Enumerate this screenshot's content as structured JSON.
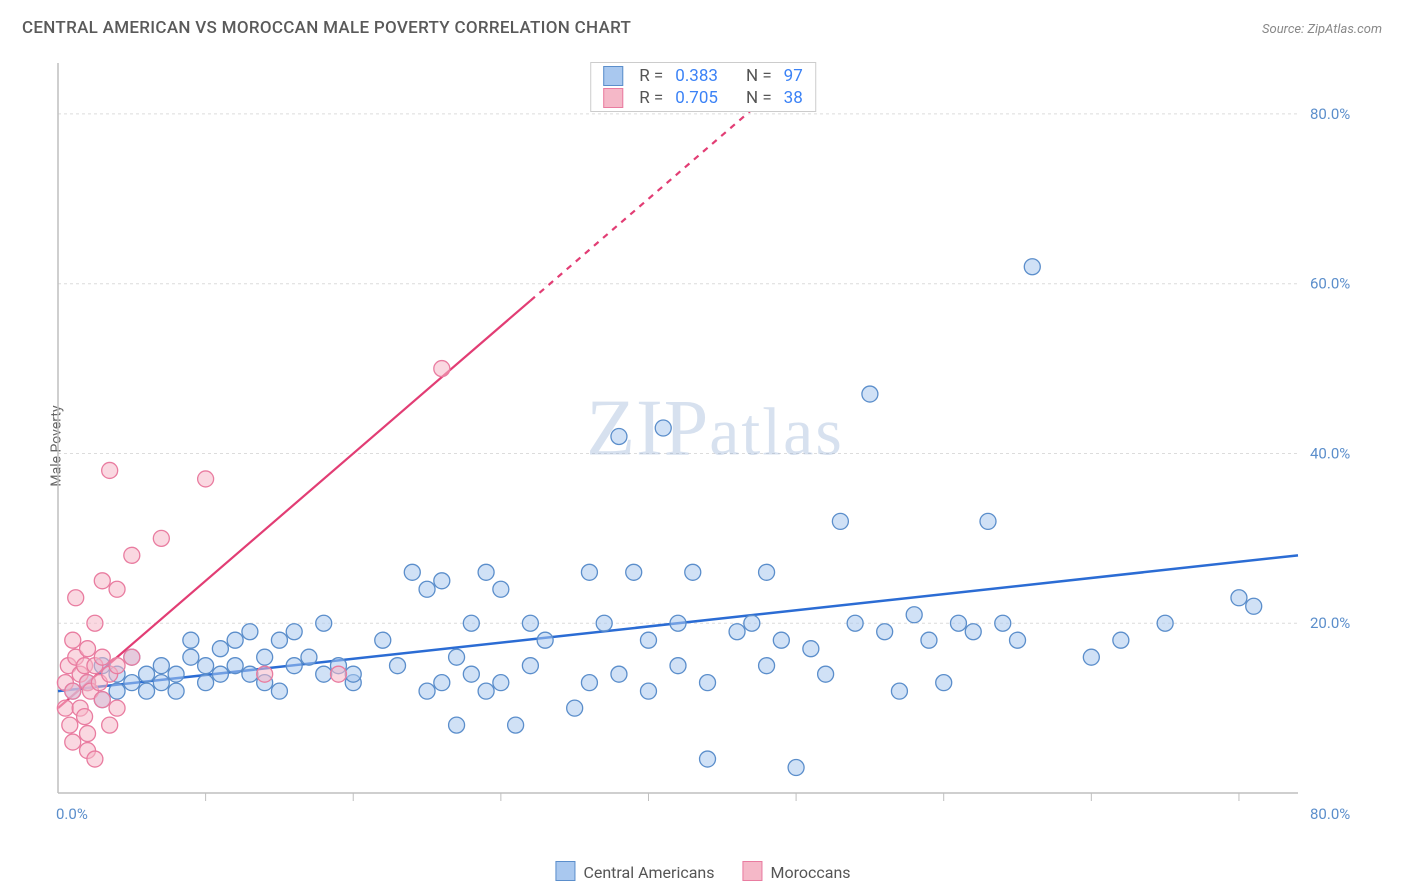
{
  "title": "CENTRAL AMERICAN VS MOROCCAN MALE POVERTY CORRELATION CHART",
  "source_label": "Source:",
  "source_name": "ZipAtlas.com",
  "ylabel": "Male Poverty",
  "watermark": "ZIPatlas",
  "chart": {
    "type": "scatter",
    "xlim": [
      0,
      84
    ],
    "ylim": [
      0,
      86
    ],
    "x_axis_end_label": "80.0%",
    "x_origin_label": "0.0%",
    "y_ticks": [
      {
        "v": 20,
        "label": "20.0%"
      },
      {
        "v": 40,
        "label": "40.0%"
      },
      {
        "v": 60,
        "label": "60.0%"
      },
      {
        "v": 80,
        "label": "80.0%"
      }
    ],
    "x_minor_ticks": [
      10,
      20,
      30,
      40,
      50,
      60,
      70,
      80
    ],
    "grid_color": "#dcdcdc",
    "axis_color": "#bfbfbf",
    "background": "#ffffff",
    "marker_radius": 8,
    "marker_opacity": 0.55,
    "series": [
      {
        "name": "Central Americans",
        "fill": "#a9c8ef",
        "stroke": "#5b8ecb",
        "regression": {
          "x1": 0,
          "y1": 12,
          "x2": 84,
          "y2": 28,
          "stroke": "#2b6cd4",
          "width": 2.5,
          "dash_from_x": null
        },
        "R": 0.383,
        "N": 97,
        "points": [
          [
            1,
            12
          ],
          [
            2,
            13
          ],
          [
            3,
            11
          ],
          [
            3,
            15
          ],
          [
            4,
            14
          ],
          [
            4,
            12
          ],
          [
            5,
            13
          ],
          [
            5,
            16
          ],
          [
            6,
            14
          ],
          [
            6,
            12
          ],
          [
            7,
            13
          ],
          [
            7,
            15
          ],
          [
            8,
            12
          ],
          [
            8,
            14
          ],
          [
            9,
            16
          ],
          [
            9,
            18
          ],
          [
            10,
            13
          ],
          [
            10,
            15
          ],
          [
            11,
            14
          ],
          [
            11,
            17
          ],
          [
            12,
            18
          ],
          [
            12,
            15
          ],
          [
            13,
            19
          ],
          [
            13,
            14
          ],
          [
            14,
            16
          ],
          [
            14,
            13
          ],
          [
            15,
            12
          ],
          [
            15,
            18
          ],
          [
            16,
            15
          ],
          [
            16,
            19
          ],
          [
            17,
            16
          ],
          [
            18,
            14
          ],
          [
            18,
            20
          ],
          [
            19,
            15
          ],
          [
            20,
            13
          ],
          [
            20,
            14
          ],
          [
            22,
            18
          ],
          [
            23,
            15
          ],
          [
            24,
            26
          ],
          [
            25,
            24
          ],
          [
            25,
            12
          ],
          [
            26,
            13
          ],
          [
            26,
            25
          ],
          [
            27,
            16
          ],
          [
            27,
            8
          ],
          [
            28,
            20
          ],
          [
            28,
            14
          ],
          [
            29,
            26
          ],
          [
            29,
            12
          ],
          [
            30,
            13
          ],
          [
            30,
            24
          ],
          [
            31,
            8
          ],
          [
            32,
            20
          ],
          [
            32,
            15
          ],
          [
            33,
            18
          ],
          [
            35,
            10
          ],
          [
            36,
            13
          ],
          [
            36,
            26
          ],
          [
            37,
            20
          ],
          [
            38,
            14
          ],
          [
            38,
            42
          ],
          [
            39,
            26
          ],
          [
            40,
            12
          ],
          [
            40,
            18
          ],
          [
            41,
            43
          ],
          [
            42,
            20
          ],
          [
            42,
            15
          ],
          [
            43,
            26
          ],
          [
            44,
            13
          ],
          [
            44,
            4
          ],
          [
            46,
            19
          ],
          [
            47,
            20
          ],
          [
            48,
            15
          ],
          [
            48,
            26
          ],
          [
            49,
            18
          ],
          [
            50,
            3
          ],
          [
            51,
            17
          ],
          [
            52,
            14
          ],
          [
            53,
            32
          ],
          [
            54,
            20
          ],
          [
            55,
            47
          ],
          [
            56,
            19
          ],
          [
            57,
            12
          ],
          [
            58,
            21
          ],
          [
            59,
            18
          ],
          [
            60,
            13
          ],
          [
            61,
            20
          ],
          [
            62,
            19
          ],
          [
            63,
            32
          ],
          [
            64,
            20
          ],
          [
            65,
            18
          ],
          [
            66,
            62
          ],
          [
            70,
            16
          ],
          [
            72,
            18
          ],
          [
            75,
            20
          ],
          [
            80,
            23
          ],
          [
            81,
            22
          ]
        ]
      },
      {
        "name": "Moroccans",
        "fill": "#f5b8c8",
        "stroke": "#e97ca0",
        "regression": {
          "x1": 0,
          "y1": 10,
          "x2": 50,
          "y2": 85,
          "stroke": "#e23d74",
          "width": 2.2,
          "dash_from_x": 32
        },
        "R": 0.705,
        "N": 38,
        "points": [
          [
            0.5,
            10
          ],
          [
            0.5,
            13
          ],
          [
            0.7,
            15
          ],
          [
            0.8,
            8
          ],
          [
            1,
            12
          ],
          [
            1,
            18
          ],
          [
            1,
            6
          ],
          [
            1.2,
            16
          ],
          [
            1.2,
            23
          ],
          [
            1.5,
            14
          ],
          [
            1.5,
            10
          ],
          [
            1.8,
            9
          ],
          [
            1.8,
            15
          ],
          [
            2,
            13
          ],
          [
            2,
            7
          ],
          [
            2,
            17
          ],
          [
            2,
            5
          ],
          [
            2.2,
            12
          ],
          [
            2.5,
            15
          ],
          [
            2.5,
            20
          ],
          [
            2.5,
            4
          ],
          [
            2.8,
            13
          ],
          [
            3,
            11
          ],
          [
            3,
            16
          ],
          [
            3,
            25
          ],
          [
            3.5,
            8
          ],
          [
            3.5,
            14
          ],
          [
            3.5,
            38
          ],
          [
            4,
            15
          ],
          [
            4,
            24
          ],
          [
            4,
            10
          ],
          [
            5,
            16
          ],
          [
            5,
            28
          ],
          [
            7,
            30
          ],
          [
            10,
            37
          ],
          [
            14,
            14
          ],
          [
            19,
            14
          ],
          [
            26,
            50
          ]
        ]
      }
    ]
  },
  "top_legend": {
    "rows": [
      {
        "swatch_fill": "#a9c8ef",
        "swatch_stroke": "#5b8ecb",
        "R_label": "R =",
        "R": "0.383",
        "N_label": "N =",
        "N": "97"
      },
      {
        "swatch_fill": "#f5b8c8",
        "swatch_stroke": "#e97ca0",
        "R_label": "R =",
        "R": "0.705",
        "N_label": "N =",
        "N": "38"
      }
    ]
  },
  "bottom_legend": {
    "items": [
      {
        "swatch_fill": "#a9c8ef",
        "swatch_stroke": "#5b8ecb",
        "label": "Central Americans"
      },
      {
        "swatch_fill": "#f5b8c8",
        "swatch_stroke": "#e97ca0",
        "label": "Moroccans"
      }
    ]
  }
}
